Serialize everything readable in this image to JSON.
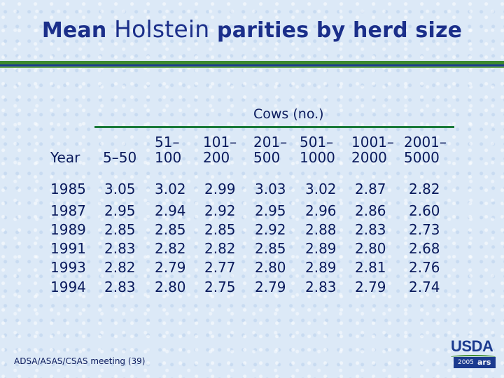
{
  "title_prefix": "Mean",
  "title_main": "Holstein",
  "title_suffix": "parities by herd size",
  "group_header": "Cows (no.)",
  "year_header": "Year",
  "columns": [
    {
      "line1": "5–50",
      "line2": ""
    },
    {
      "line1": "51–",
      "line2": "100"
    },
    {
      "line1": "101–",
      "line2": "200"
    },
    {
      "line1": "201–",
      "line2": "500"
    },
    {
      "line1": "501–",
      "line2": "1000"
    },
    {
      "line1": "1001–",
      "line2": "2000"
    },
    {
      "line1": "2001–",
      "line2": "5000"
    }
  ],
  "rows": [
    {
      "year": "1985",
      "values": [
        "3.05",
        "3.02",
        "2.99",
        "3.03",
        "3.02",
        "2.87",
        "2.82"
      ]
    },
    {
      "year": "1987",
      "values": [
        "2.95",
        "2.94",
        "2.92",
        "2.95",
        "2.96",
        "2.86",
        "2.60"
      ]
    },
    {
      "year": "1989",
      "values": [
        "2.85",
        "2.85",
        "2.85",
        "2.92",
        "2.88",
        "2.83",
        "2.73"
      ]
    },
    {
      "year": "1991",
      "values": [
        "2.83",
        "2.82",
        "2.82",
        "2.85",
        "2.89",
        "2.80",
        "2.68"
      ]
    },
    {
      "year": "1993",
      "values": [
        "2.82",
        "2.79",
        "2.77",
        "2.80",
        "2.89",
        "2.81",
        "2.76"
      ]
    },
    {
      "year": "1994",
      "values": [
        "2.83",
        "2.80",
        "2.75",
        "2.79",
        "2.83",
        "2.79",
        "2.74"
      ]
    }
  ],
  "footer": "ADSA/ASAS/CSAS meeting (39)",
  "logo": {
    "word": "USDA",
    "year": "2005",
    "mark": "ars"
  },
  "colors": {
    "title": "#1b2f8a",
    "text": "#0a1a5c",
    "rule_green": "#3c8a2e",
    "rule_blue": "#1b3a8f"
  }
}
